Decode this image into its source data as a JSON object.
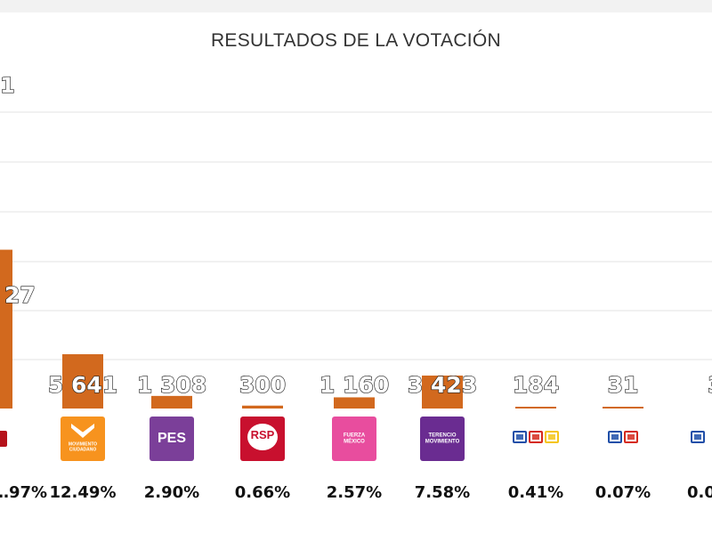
{
  "chart_data": {
    "type": "bar",
    "title": "RESULTADOS DE LA VOTACIÓN",
    "categories": [
      "MORENA",
      "MOVIMIENTO CIUDADANO",
      "PES",
      "RSP",
      "FUERZA MÉXICO",
      "TERENCIO MOVIMIENTO",
      "PAN-PRI-PRD",
      "PAN-PRI",
      "PAN"
    ],
    "series": [
      {
        "values": [
          null,
          5641,
          1308,
          300,
          1160,
          3423,
          184,
          31,
          null
        ],
        "value_labels": [
          "27",
          "5 641",
          "1 308",
          "300",
          "1 160",
          "3 423",
          "184",
          "31",
          "3"
        ],
        "percent_labels": [
          "…97%",
          "12.49%",
          "2.90%",
          "0.66%",
          "2.57%",
          "7.58%",
          "0.41%",
          "0.07%",
          "0.0…"
        ]
      }
    ],
    "bar_color": "#d2691e",
    "grid": true,
    "legend": "none",
    "first_bar_visible_value_estimate": 16500
  },
  "logos": [
    {
      "name": "morena-logo",
      "text": "",
      "color": "#b5121b"
    },
    {
      "name": "movimiento-ciudadano-logo",
      "text": "MOVIMIENTO CIUDADANO",
      "color": "#f7931e"
    },
    {
      "name": "pes-logo",
      "text": "PES",
      "color": "#7b3f99"
    },
    {
      "name": "rsp-logo",
      "text": "RSP",
      "color": "#c8102e"
    },
    {
      "name": "fuerza-mexico-logo",
      "text": "FUERZA MÉXICO",
      "color": "#e84d9e"
    },
    {
      "name": "terencio-logo",
      "text": "TERENCIO MOVIMIENTO",
      "color": "#6a2c91"
    },
    {
      "name": "pan-pri-prd-logo",
      "text": "",
      "color": "#1f4fa8"
    },
    {
      "name": "pan-pri-logo",
      "text": "",
      "color": "#1f4fa8"
    },
    {
      "name": "pan-logo",
      "text": "",
      "color": "#1f4fa8"
    }
  ],
  "cut_off_label": "1"
}
